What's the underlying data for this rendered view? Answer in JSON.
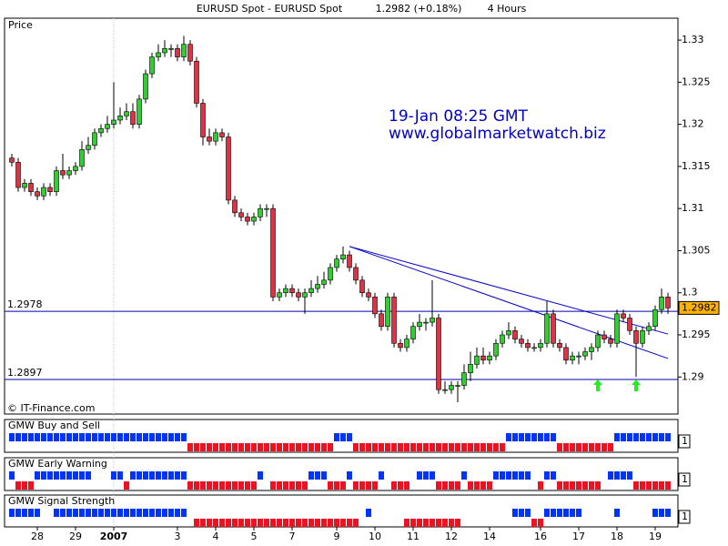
{
  "chart_data": {
    "type": "candlestick",
    "title": [
      "EURUSD Spot - EURUSD Spot",
      "1.2982 (+0.18%)",
      "4 Hours"
    ],
    "y_label": "Price",
    "annotations": [
      "19-Jan 08:25 GMT",
      "www.globalmarketwatch.biz"
    ],
    "copyright": "© IT-Finance.com",
    "up_color": "#33cc33",
    "down_color": "#dd3344",
    "buy_color": "#0033ff",
    "sell_color": "#ee1122",
    "ylim": [
      1.2856,
      1.3326
    ],
    "yticks": [
      1.29,
      1.295,
      1.3,
      1.305,
      1.31,
      1.315,
      1.32,
      1.325,
      1.33
    ],
    "xticks": [
      {
        "value": 4,
        "label": "28"
      },
      {
        "value": 10,
        "label": "29"
      },
      {
        "value": 16,
        "label": "2007"
      },
      {
        "value": 26,
        "label": "3"
      },
      {
        "value": 32,
        "label": "4"
      },
      {
        "value": 38,
        "label": "5"
      },
      {
        "value": 44,
        "label": "7"
      },
      {
        "value": 51,
        "label": "9"
      },
      {
        "value": 57,
        "label": "10"
      },
      {
        "value": 63,
        "label": "11"
      },
      {
        "value": 69,
        "label": "12"
      },
      {
        "value": 75,
        "label": "14"
      },
      {
        "value": 83,
        "label": "16"
      },
      {
        "value": 89,
        "label": "17"
      },
      {
        "value": 95,
        "label": "18"
      },
      {
        "value": 101,
        "label": "19"
      }
    ],
    "levels": [
      1.2978,
      1.2897
    ],
    "trendlines": [
      {
        "from": [
          53,
          1.3055
        ],
        "to": [
          103,
          1.2951
        ]
      },
      {
        "from": [
          53,
          1.3055
        ],
        "to": [
          103,
          1.2922
        ]
      }
    ],
    "signal_arrows": [
      92,
      98
    ],
    "ohlc": [
      [
        1.316,
        1.3165,
        1.315,
        1.3155
      ],
      [
        1.3155,
        1.316,
        1.312,
        1.3125
      ],
      [
        1.3125,
        1.3135,
        1.312,
        1.313
      ],
      [
        1.313,
        1.3135,
        1.3115,
        1.312
      ],
      [
        1.312,
        1.3125,
        1.311,
        1.3115
      ],
      [
        1.3115,
        1.313,
        1.311,
        1.3125
      ],
      [
        1.3125,
        1.313,
        1.3115,
        1.312
      ],
      [
        1.312,
        1.315,
        1.3115,
        1.3145
      ],
      [
        1.3145,
        1.3165,
        1.3135,
        1.314
      ],
      [
        1.314,
        1.315,
        1.3135,
        1.3145
      ],
      [
        1.3145,
        1.3155,
        1.314,
        1.315
      ],
      [
        1.315,
        1.318,
        1.3145,
        1.317
      ],
      [
        1.317,
        1.3185,
        1.3165,
        1.3175
      ],
      [
        1.3175,
        1.3195,
        1.317,
        1.319
      ],
      [
        1.319,
        1.32,
        1.3185,
        1.3195
      ],
      [
        1.3195,
        1.321,
        1.319,
        1.32
      ],
      [
        1.32,
        1.325,
        1.3195,
        1.3205
      ],
      [
        1.3205,
        1.322,
        1.32,
        1.321
      ],
      [
        1.321,
        1.3225,
        1.3205,
        1.3215
      ],
      [
        1.3215,
        1.3225,
        1.3195,
        1.32
      ],
      [
        1.32,
        1.3235,
        1.3195,
        1.323
      ],
      [
        1.323,
        1.3265,
        1.3225,
        1.326
      ],
      [
        1.326,
        1.3285,
        1.3255,
        1.328
      ],
      [
        1.328,
        1.3295,
        1.3275,
        1.3285
      ],
      [
        1.3285,
        1.33,
        1.328,
        1.329
      ],
      [
        1.329,
        1.3295,
        1.328,
        1.329
      ],
      [
        1.329,
        1.3295,
        1.3275,
        1.328
      ],
      [
        1.328,
        1.3305,
        1.3275,
        1.3295
      ],
      [
        1.3295,
        1.33,
        1.327,
        1.3275
      ],
      [
        1.3275,
        1.328,
        1.322,
        1.3225
      ],
      [
        1.3225,
        1.323,
        1.3175,
        1.3185
      ],
      [
        1.3185,
        1.3195,
        1.3175,
        1.318
      ],
      [
        1.318,
        1.3195,
        1.3175,
        1.319
      ],
      [
        1.319,
        1.3195,
        1.318,
        1.3185
      ],
      [
        1.3185,
        1.319,
        1.3105,
        1.311
      ],
      [
        1.311,
        1.3115,
        1.309,
        1.3095
      ],
      [
        1.3095,
        1.31,
        1.3085,
        1.309
      ],
      [
        1.309,
        1.3095,
        1.308,
        1.3085
      ],
      [
        1.3085,
        1.3095,
        1.308,
        1.309
      ],
      [
        1.309,
        1.3105,
        1.3085,
        1.31
      ],
      [
        1.31,
        1.3105,
        1.309,
        1.31
      ],
      [
        1.31,
        1.3105,
        1.299,
        1.2995
      ],
      [
        1.2995,
        1.3005,
        1.299,
        1.3
      ],
      [
        1.3,
        1.301,
        1.2995,
        1.3005
      ],
      [
        1.3005,
        1.301,
        1.2995,
        1.3
      ],
      [
        1.3,
        1.3005,
        1.299,
        1.2995
      ],
      [
        1.2995,
        1.3005,
        1.2975,
        1.3
      ],
      [
        1.3,
        1.3015,
        1.2995,
        1.3005
      ],
      [
        1.3005,
        1.302,
        1.3,
        1.301
      ],
      [
        1.301,
        1.3025,
        1.3005,
        1.3015
      ],
      [
        1.3015,
        1.3035,
        1.301,
        1.303
      ],
      [
        1.303,
        1.3045,
        1.3025,
        1.304
      ],
      [
        1.304,
        1.3055,
        1.3035,
        1.3045
      ],
      [
        1.3045,
        1.305,
        1.3025,
        1.303
      ],
      [
        1.303,
        1.3035,
        1.301,
        1.3015
      ],
      [
        1.3015,
        1.302,
        1.2995,
        1.3
      ],
      [
        1.3,
        1.3005,
        1.299,
        1.2995
      ],
      [
        1.2995,
        1.3,
        1.297,
        1.2975
      ],
      [
        1.2975,
        1.298,
        1.2955,
        1.296
      ],
      [
        1.296,
        1.3,
        1.2955,
        1.2995
      ],
      [
        1.2995,
        1.3,
        1.2935,
        1.294
      ],
      [
        1.294,
        1.2945,
        1.293,
        1.2935
      ],
      [
        1.2935,
        1.295,
        1.293,
        1.2945
      ],
      [
        1.2945,
        1.2965,
        1.294,
        1.296
      ],
      [
        1.296,
        1.2975,
        1.2955,
        1.2965
      ],
      [
        1.2965,
        1.297,
        1.2955,
        1.2965
      ],
      [
        1.2965,
        1.3015,
        1.296,
        1.297
      ],
      [
        1.297,
        1.2975,
        1.288,
        1.2885
      ],
      [
        1.2885,
        1.2895,
        1.288,
        1.2885
      ],
      [
        1.2885,
        1.2895,
        1.288,
        1.289
      ],
      [
        1.289,
        1.2895,
        1.287,
        1.289
      ],
      [
        1.289,
        1.2915,
        1.2885,
        1.2905
      ],
      [
        1.2905,
        1.293,
        1.2895,
        1.2915
      ],
      [
        1.2915,
        1.2935,
        1.291,
        1.2925
      ],
      [
        1.2925,
        1.2935,
        1.2915,
        1.292
      ],
      [
        1.292,
        1.293,
        1.2915,
        1.2925
      ],
      [
        1.2925,
        1.2945,
        1.292,
        1.294
      ],
      [
        1.294,
        1.2955,
        1.2935,
        1.295
      ],
      [
        1.295,
        1.2965,
        1.2945,
        1.2955
      ],
      [
        1.2955,
        1.296,
        1.294,
        1.2945
      ],
      [
        1.2945,
        1.295,
        1.2935,
        1.294
      ],
      [
        1.294,
        1.2945,
        1.293,
        1.2935
      ],
      [
        1.2935,
        1.294,
        1.293,
        1.2935
      ],
      [
        1.2935,
        1.2945,
        1.293,
        1.294
      ],
      [
        1.294,
        1.299,
        1.2935,
        1.2975
      ],
      [
        1.2975,
        1.298,
        1.2935,
        1.294
      ],
      [
        1.294,
        1.2945,
        1.293,
        1.2935
      ],
      [
        1.2935,
        1.294,
        1.2915,
        1.292
      ],
      [
        1.292,
        1.293,
        1.2915,
        1.2925
      ],
      [
        1.2925,
        1.293,
        1.2915,
        1.2925
      ],
      [
        1.2925,
        1.2935,
        1.292,
        1.293
      ],
      [
        1.293,
        1.294,
        1.292,
        1.2935
      ],
      [
        1.2935,
        1.2955,
        1.293,
        1.295
      ],
      [
        1.295,
        1.2955,
        1.294,
        1.2945
      ],
      [
        1.2945,
        1.295,
        1.2935,
        1.294
      ],
      [
        1.294,
        1.298,
        1.2935,
        1.2975
      ],
      [
        1.2975,
        1.298,
        1.2965,
        1.297
      ],
      [
        1.297,
        1.2975,
        1.295,
        1.2955
      ],
      [
        1.2955,
        1.296,
        1.29,
        1.294
      ],
      [
        1.294,
        1.296,
        1.2935,
        1.2955
      ],
      [
        1.2955,
        1.2965,
        1.295,
        1.296
      ],
      [
        1.296,
        1.2985,
        1.2955,
        1.298
      ],
      [
        1.298,
        1.3005,
        1.2975,
        1.2995
      ],
      [
        1.2995,
        1.3,
        1.2975,
        1.2982
      ]
    ],
    "panels": [
      {
        "name": "GMW Buy and Sell",
        "value": 1,
        "signals": [
          1,
          1,
          1,
          1,
          1,
          1,
          1,
          1,
          1,
          1,
          1,
          1,
          1,
          1,
          1,
          1,
          1,
          1,
          1,
          1,
          1,
          1,
          1,
          1,
          1,
          1,
          1,
          1,
          -1,
          -1,
          -1,
          -1,
          -1,
          -1,
          -1,
          -1,
          -1,
          -1,
          -1,
          -1,
          -1,
          -1,
          -1,
          -1,
          -1,
          -1,
          -1,
          -1,
          -1,
          -1,
          -1,
          1,
          1,
          1,
          -1,
          -1,
          -1,
          -1,
          -1,
          -1,
          -1,
          -1,
          -1,
          -1,
          -1,
          -1,
          -1,
          -1,
          -1,
          -1,
          -1,
          -1,
          -1,
          -1,
          -1,
          -1,
          -1,
          -1,
          1,
          1,
          1,
          1,
          1,
          1,
          1,
          1,
          -1,
          -1,
          -1,
          -1,
          -1,
          -1,
          -1,
          -1,
          -1,
          1,
          1,
          1,
          1,
          1,
          1,
          1,
          1,
          1
        ]
      },
      {
        "name": "GMW Early Warning",
        "value": 1,
        "signals": [
          1,
          -1,
          -1,
          -1,
          1,
          1,
          1,
          1,
          1,
          1,
          1,
          1,
          1,
          0,
          0,
          0,
          1,
          1,
          -1,
          1,
          1,
          1,
          1,
          1,
          1,
          1,
          1,
          1,
          -1,
          -1,
          -1,
          -1,
          -1,
          -1,
          -1,
          -1,
          -1,
          -1,
          -1,
          1,
          0,
          -1,
          -1,
          -1,
          -1,
          -1,
          -1,
          1,
          1,
          1,
          -1,
          -1,
          -1,
          1,
          -1,
          -1,
          -1,
          -1,
          1,
          0,
          -1,
          -1,
          -1,
          0,
          1,
          1,
          1,
          -1,
          -1,
          -1,
          -1,
          1,
          -1,
          -1,
          -1,
          -1,
          1,
          1,
          1,
          1,
          1,
          1,
          0,
          -1,
          1,
          1,
          -1,
          -1,
          -1,
          -1,
          -1,
          -1,
          -1,
          0,
          1,
          1,
          1,
          1,
          -1,
          -1,
          -1,
          -1,
          -1,
          -1
        ]
      },
      {
        "name": "GMW Signal Strength",
        "value": 1,
        "signals": [
          1,
          1,
          1,
          1,
          1,
          0,
          0,
          1,
          1,
          1,
          1,
          1,
          1,
          1,
          1,
          1,
          1,
          1,
          1,
          1,
          1,
          1,
          1,
          1,
          1,
          1,
          1,
          1,
          0,
          -1,
          -1,
          -1,
          -1,
          -1,
          -1,
          -1,
          -1,
          -1,
          -1,
          -1,
          -1,
          -1,
          -1,
          -1,
          -1,
          -1,
          -1,
          -1,
          -1,
          -1,
          -1,
          -1,
          -1,
          -1,
          -1,
          0,
          1,
          0,
          0,
          0,
          0,
          0,
          -1,
          -1,
          -1,
          -1,
          -1,
          -1,
          -1,
          -1,
          -1,
          0,
          0,
          0,
          0,
          0,
          0,
          0,
          0,
          1,
          1,
          1,
          -1,
          -1,
          1,
          1,
          1,
          1,
          1,
          1,
          0,
          0,
          0,
          0,
          0,
          1,
          0,
          0,
          0,
          0,
          0,
          1,
          1,
          1
        ]
      }
    ]
  }
}
